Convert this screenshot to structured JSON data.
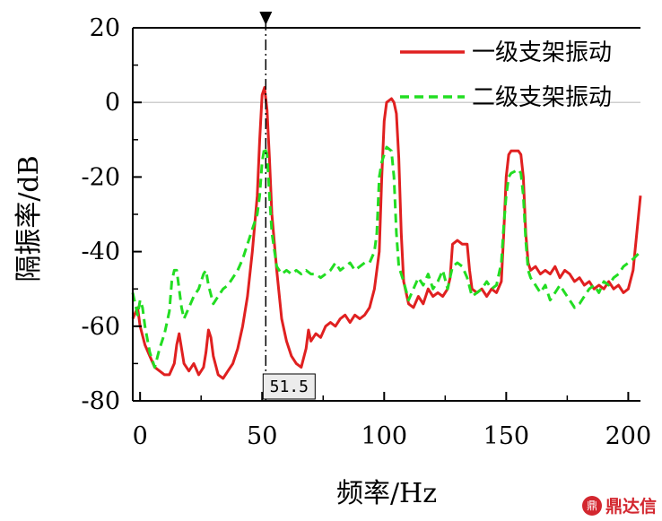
{
  "chart_data": {
    "type": "line",
    "xlabel": "频率/Hz",
    "ylabel": "隔振率/dB",
    "xlim": [
      -3,
      205
    ],
    "ylim": [
      -80,
      20
    ],
    "xticks": [
      0,
      50,
      100,
      150,
      200
    ],
    "xtick_labels": [
      "0",
      "50",
      "100",
      "150",
      "200"
    ],
    "yticks": [
      20,
      0,
      -20,
      -40,
      -60,
      -80
    ],
    "ytick_labels": [
      "20",
      "0",
      "-20",
      "-40",
      "-60",
      "-80"
    ],
    "reference_line": 0,
    "marker": {
      "x": 51.5,
      "label": "51.5"
    },
    "legend_position": "top-right",
    "series": [
      {
        "name": "一级支架振动",
        "color": "#e02020",
        "dash": "solid",
        "points": [
          [
            -3,
            -58
          ],
          [
            -1,
            -55
          ],
          [
            0,
            -60
          ],
          [
            2,
            -65
          ],
          [
            4,
            -68
          ],
          [
            6,
            -71
          ],
          [
            8,
            -72
          ],
          [
            10,
            -73
          ],
          [
            12,
            -73
          ],
          [
            14,
            -70
          ],
          [
            15,
            -65
          ],
          [
            16,
            -62
          ],
          [
            17,
            -66
          ],
          [
            18,
            -70
          ],
          [
            20,
            -72
          ],
          [
            22,
            -70
          ],
          [
            24,
            -73
          ],
          [
            26,
            -71
          ],
          [
            27,
            -67
          ],
          [
            28,
            -61
          ],
          [
            29,
            -63
          ],
          [
            30,
            -68
          ],
          [
            32,
            -73
          ],
          [
            34,
            -74
          ],
          [
            36,
            -72
          ],
          [
            38,
            -70
          ],
          [
            40,
            -66
          ],
          [
            42,
            -60
          ],
          [
            44,
            -52
          ],
          [
            46,
            -40
          ],
          [
            48,
            -25
          ],
          [
            49,
            -10
          ],
          [
            50,
            2
          ],
          [
            51,
            4
          ],
          [
            52,
            -2
          ],
          [
            53,
            -15
          ],
          [
            54,
            -30
          ],
          [
            56,
            -45
          ],
          [
            58,
            -58
          ],
          [
            60,
            -64
          ],
          [
            62,
            -68
          ],
          [
            64,
            -70
          ],
          [
            66,
            -71
          ],
          [
            68,
            -66
          ],
          [
            69,
            -61
          ],
          [
            70,
            -64
          ],
          [
            72,
            -62
          ],
          [
            74,
            -63
          ],
          [
            76,
            -60
          ],
          [
            78,
            -59
          ],
          [
            80,
            -60
          ],
          [
            82,
            -58
          ],
          [
            84,
            -57
          ],
          [
            86,
            -59
          ],
          [
            88,
            -57
          ],
          [
            90,
            -58
          ],
          [
            92,
            -57
          ],
          [
            94,
            -55
          ],
          [
            96,
            -50
          ],
          [
            98,
            -40
          ],
          [
            99,
            -20
          ],
          [
            100,
            -5
          ],
          [
            101,
            0
          ],
          [
            103,
            1
          ],
          [
            104,
            0
          ],
          [
            105,
            -3
          ],
          [
            106,
            -15
          ],
          [
            107,
            -35
          ],
          [
            108,
            -48
          ],
          [
            110,
            -54
          ],
          [
            112,
            -55
          ],
          [
            114,
            -52
          ],
          [
            116,
            -54
          ],
          [
            118,
            -50
          ],
          [
            120,
            -52
          ],
          [
            122,
            -51
          ],
          [
            124,
            -52
          ],
          [
            126,
            -50
          ],
          [
            127,
            -47
          ],
          [
            128,
            -38
          ],
          [
            130,
            -37
          ],
          [
            132,
            -38
          ],
          [
            134,
            -38
          ],
          [
            135,
            -45
          ],
          [
            136,
            -50
          ],
          [
            138,
            -51
          ],
          [
            140,
            -50
          ],
          [
            142,
            -52
          ],
          [
            144,
            -50
          ],
          [
            146,
            -51
          ],
          [
            148,
            -48
          ],
          [
            149,
            -35
          ],
          [
            150,
            -20
          ],
          [
            151,
            -14
          ],
          [
            152,
            -13
          ],
          [
            155,
            -13
          ],
          [
            156,
            -14
          ],
          [
            157,
            -20
          ],
          [
            158,
            -35
          ],
          [
            159,
            -43
          ],
          [
            160,
            -45
          ],
          [
            162,
            -44
          ],
          [
            164,
            -46
          ],
          [
            166,
            -45
          ],
          [
            168,
            -46
          ],
          [
            170,
            -44
          ],
          [
            172,
            -47
          ],
          [
            174,
            -45
          ],
          [
            176,
            -46
          ],
          [
            178,
            -48
          ],
          [
            180,
            -47
          ],
          [
            182,
            -49
          ],
          [
            184,
            -48
          ],
          [
            186,
            -50
          ],
          [
            188,
            -49
          ],
          [
            190,
            -50
          ],
          [
            192,
            -48
          ],
          [
            194,
            -50
          ],
          [
            196,
            -49
          ],
          [
            198,
            -51
          ],
          [
            200,
            -50
          ],
          [
            202,
            -45
          ],
          [
            205,
            -25
          ]
        ]
      },
      {
        "name": "二级支架振动",
        "color": "#22dd22",
        "dash": "10,6",
        "points": [
          [
            -3,
            -51
          ],
          [
            -1,
            -57
          ],
          [
            0,
            -53
          ],
          [
            1,
            -55
          ],
          [
            2,
            -60
          ],
          [
            4,
            -67
          ],
          [
            6,
            -71
          ],
          [
            8,
            -66
          ],
          [
            10,
            -62
          ],
          [
            12,
            -56
          ],
          [
            13,
            -48
          ],
          [
            14,
            -45
          ],
          [
            15,
            -45
          ],
          [
            16,
            -50
          ],
          [
            17,
            -55
          ],
          [
            18,
            -58
          ],
          [
            20,
            -55
          ],
          [
            22,
            -52
          ],
          [
            24,
            -50
          ],
          [
            26,
            -46
          ],
          [
            27,
            -45
          ],
          [
            28,
            -49
          ],
          [
            30,
            -54
          ],
          [
            32,
            -52
          ],
          [
            34,
            -50
          ],
          [
            36,
            -49
          ],
          [
            38,
            -47
          ],
          [
            40,
            -45
          ],
          [
            42,
            -42
          ],
          [
            44,
            -38
          ],
          [
            46,
            -34
          ],
          [
            48,
            -30
          ],
          [
            49,
            -25
          ],
          [
            50,
            -16
          ],
          [
            51,
            -12
          ],
          [
            52,
            -14
          ],
          [
            53,
            -25
          ],
          [
            54,
            -35
          ],
          [
            56,
            -44
          ],
          [
            58,
            -46
          ],
          [
            60,
            -45
          ],
          [
            62,
            -46
          ],
          [
            64,
            -45
          ],
          [
            66,
            -46
          ],
          [
            68,
            -45
          ],
          [
            70,
            -46
          ],
          [
            72,
            -46
          ],
          [
            74,
            -47
          ],
          [
            76,
            -46
          ],
          [
            78,
            -45
          ],
          [
            80,
            -43
          ],
          [
            82,
            -45
          ],
          [
            84,
            -44
          ],
          [
            86,
            -43
          ],
          [
            88,
            -45
          ],
          [
            90,
            -44
          ],
          [
            92,
            -43
          ],
          [
            94,
            -43
          ],
          [
            96,
            -40
          ],
          [
            97,
            -35
          ],
          [
            98,
            -20
          ],
          [
            99,
            -16
          ],
          [
            100,
            -14
          ],
          [
            101,
            -12
          ],
          [
            103,
            -13
          ],
          [
            104,
            -20
          ],
          [
            105,
            -35
          ],
          [
            106,
            -44
          ],
          [
            108,
            -48
          ],
          [
            110,
            -53
          ],
          [
            112,
            -50
          ],
          [
            114,
            -47
          ],
          [
            116,
            -49
          ],
          [
            118,
            -46
          ],
          [
            120,
            -50
          ],
          [
            122,
            -48
          ],
          [
            124,
            -45
          ],
          [
            126,
            -50
          ],
          [
            128,
            -44
          ],
          [
            130,
            -43
          ],
          [
            132,
            -44
          ],
          [
            134,
            -47
          ],
          [
            136,
            -52
          ],
          [
            138,
            -51
          ],
          [
            140,
            -50
          ],
          [
            142,
            -48
          ],
          [
            144,
            -50
          ],
          [
            146,
            -49
          ],
          [
            148,
            -43
          ],
          [
            149,
            -33
          ],
          [
            150,
            -25
          ],
          [
            151,
            -20
          ],
          [
            152,
            -19
          ],
          [
            155,
            -18
          ],
          [
            156,
            -19
          ],
          [
            157,
            -25
          ],
          [
            158,
            -37
          ],
          [
            159,
            -45
          ],
          [
            160,
            -47
          ],
          [
            162,
            -49
          ],
          [
            164,
            -51
          ],
          [
            166,
            -49
          ],
          [
            168,
            -53
          ],
          [
            170,
            -51
          ],
          [
            172,
            -49
          ],
          [
            174,
            -51
          ],
          [
            176,
            -53
          ],
          [
            178,
            -55
          ],
          [
            180,
            -54
          ],
          [
            182,
            -52
          ],
          [
            184,
            -50
          ],
          [
            186,
            -49
          ],
          [
            188,
            -51
          ],
          [
            190,
            -48
          ],
          [
            192,
            -49
          ],
          [
            194,
            -47
          ],
          [
            196,
            -46
          ],
          [
            198,
            -44
          ],
          [
            200,
            -43
          ],
          [
            202,
            -42
          ],
          [
            205,
            -40
          ]
        ]
      }
    ]
  },
  "watermark": {
    "icon_text": "鼎",
    "text": "鼎达信"
  }
}
